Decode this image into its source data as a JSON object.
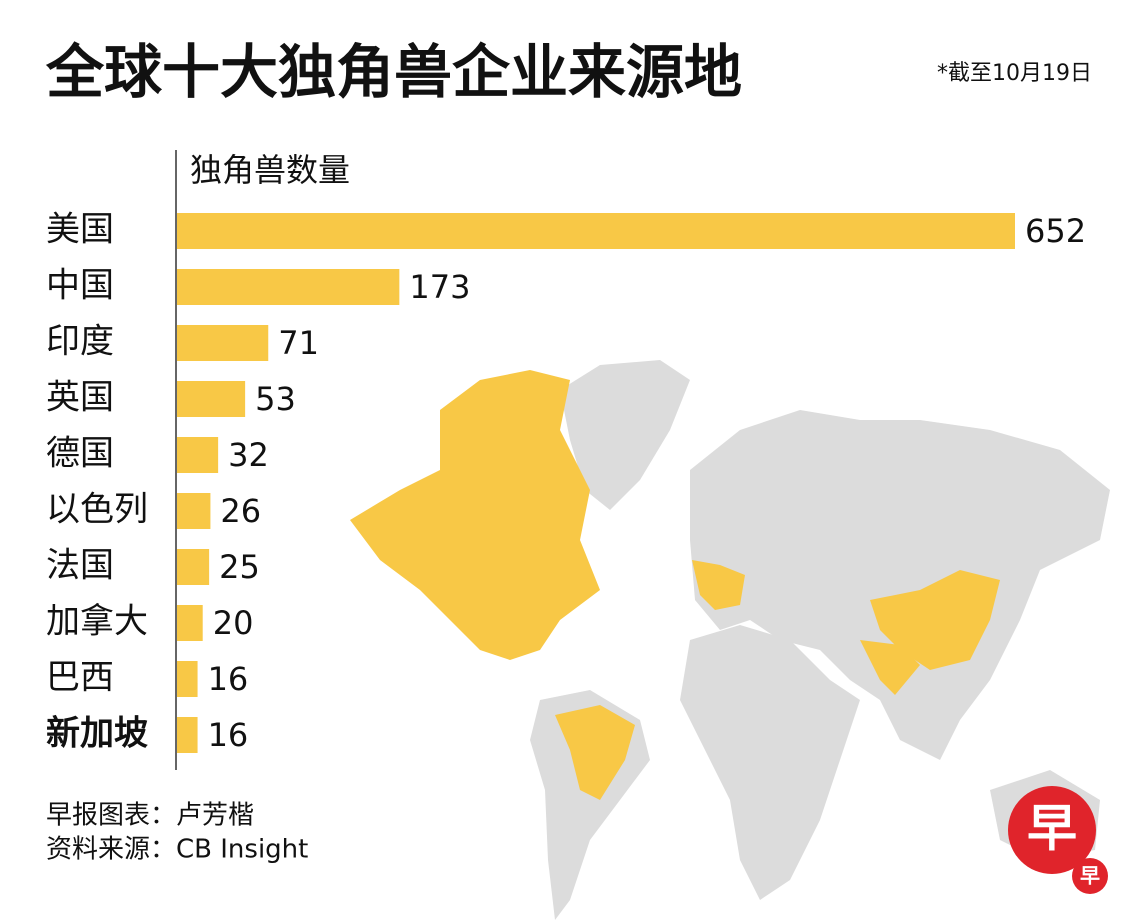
{
  "chart_data": {
    "type": "bar",
    "orientation": "horizontal",
    "title": "全球十大独角兽企业来源地",
    "subtitle": "*截至10月19日",
    "x_label": "独角兽数量",
    "categories": [
      "美国",
      "中国",
      "印度",
      "英国",
      "德国",
      "以色列",
      "法国",
      "加拿大",
      "巴西",
      "新加坡"
    ],
    "values": [
      652,
      173,
      71,
      53,
      32,
      26,
      25,
      20,
      16,
      16
    ],
    "color": "#f8c846",
    "notes": [
      "早报图表：卢芳楷",
      "资料来源：CB Insight"
    ],
    "logo": "早"
  }
}
